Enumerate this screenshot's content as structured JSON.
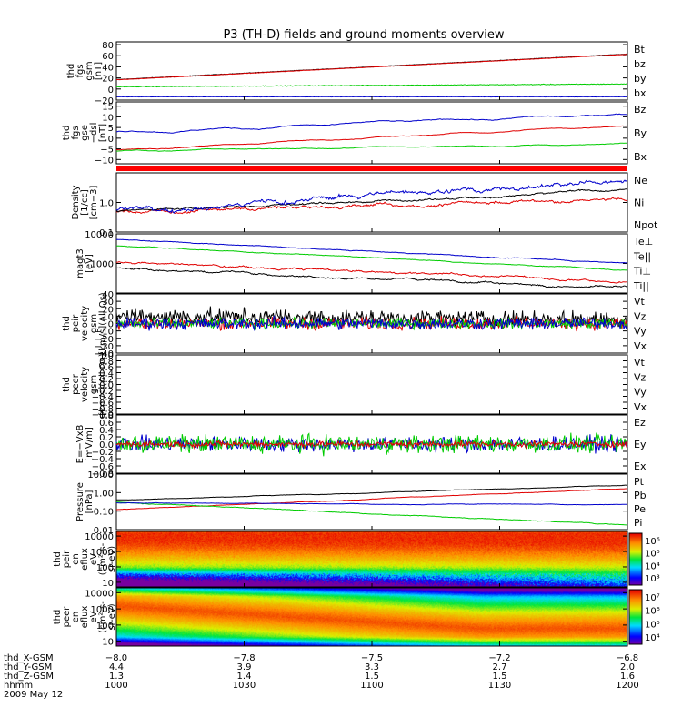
{
  "title": "P3 (TH-D) fields and ground moments overview",
  "colors": {
    "black": "#000000",
    "red": "#e00000",
    "green": "#00cc00",
    "blue": "#0000cc"
  },
  "chart_data": [
    {
      "type": "line",
      "ylabel": [
        "thd",
        "fgs",
        "gsm",
        "[nT]"
      ],
      "ylim": [
        -20,
        85
      ],
      "yticks": [
        "80",
        "60",
        "40",
        "20",
        "0",
        "−20"
      ],
      "legend": [
        "Bt",
        "bz",
        "by",
        "bx"
      ],
      "series": [
        {
          "name": "Bt",
          "color": "#000000",
          "start": 17,
          "end": 63,
          "noise": 0.3
        },
        {
          "name": "bz",
          "color": "#e00000",
          "start": 16.5,
          "end": 62.5,
          "noise": 0.3
        },
        {
          "name": "by",
          "color": "#00cc00",
          "start": 4,
          "end": 9,
          "noise": 0.5
        },
        {
          "name": "bx",
          "color": "#0000cc",
          "start": -14,
          "end": -14,
          "noise": 0.3
        }
      ]
    },
    {
      "type": "line",
      "ylabel": [
        "thd",
        "fgs",
        "gse",
        "−dsl",
        "[nT]"
      ],
      "ylim": [
        -12,
        17
      ],
      "yticks": [
        "15",
        "10",
        "5",
        "0",
        "−5",
        "−10"
      ],
      "legend": [
        "Bz",
        "By",
        "Bx"
      ],
      "series": [
        {
          "name": "Bz",
          "color": "#0000cc",
          "start": 3,
          "end": 11,
          "noise": 0.9
        },
        {
          "name": "By",
          "color": "#e00000",
          "start": -5.5,
          "end": 6,
          "noise": 0.6
        },
        {
          "name": "Bx",
          "color": "#00cc00",
          "start": -6,
          "end": -2.5,
          "noise": 0.6
        }
      ]
    },
    {
      "type": "line",
      "ylabel": [
        "Density",
        "[1/cc]",
        "[cm−3]"
      ],
      "ylim": [
        0.1,
        10
      ],
      "scale": "log",
      "yticks": [
        "1.0",
        "0.1"
      ],
      "legend": [
        "Ne",
        "Ni",
        "Npot"
      ],
      "series": [
        {
          "name": "Ne",
          "color": "#e00000",
          "start": 0.5,
          "end": 1.2,
          "noise": 0.08
        },
        {
          "name": "Ni",
          "color": "#000000",
          "start": 0.5,
          "end": 2.5,
          "noise": 0.05
        },
        {
          "name": "Npot",
          "color": "#0000cc",
          "start": 0.55,
          "end": 6.0,
          "noise": 0.12
        }
      ]
    },
    {
      "type": "line",
      "ylabel": [
        "magt3",
        "[eV]"
      ],
      "ylim": [
        100,
        10000
      ],
      "scale": "log",
      "yticks": [
        "10000",
        "1000"
      ],
      "legend": [
        "Te⊥",
        "Te||",
        "Ti⊥",
        "Ti||"
      ],
      "series": [
        {
          "name": "Te⊥",
          "color": "#e00000",
          "start": 1100,
          "end": 250,
          "noise": 0.05
        },
        {
          "name": "Te||",
          "color": "#000000",
          "start": 700,
          "end": 150,
          "noise": 0.05
        },
        {
          "name": "Ti⊥",
          "color": "#0000cc",
          "start": 6500,
          "end": 1000,
          "noise": 0.02
        },
        {
          "name": "Ti||",
          "color": "#00cc00",
          "start": 4000,
          "end": 600,
          "noise": 0.02
        }
      ]
    },
    {
      "type": "line",
      "ylabel": [
        "thd",
        "peir",
        "velocity",
        "gsm",
        "[km/s](All Qs)"
      ],
      "ylim": [
        -40,
        40
      ],
      "yticks": [
        "40",
        "30",
        "20",
        "10",
        "0",
        "−10",
        "−20",
        "−30",
        "−40"
      ],
      "legend": [
        "Vt",
        "Vz",
        "Vy",
        "Vx"
      ],
      "series": [
        {
          "name": "Vt",
          "color": "#000000",
          "start": 10,
          "end": 5,
          "noise": 8
        },
        {
          "name": "Vz",
          "color": "#e00000",
          "start": 0,
          "end": 0,
          "noise": 6
        },
        {
          "name": "Vy",
          "color": "#00cc00",
          "start": 0,
          "end": 0,
          "noise": 5
        },
        {
          "name": "Vx",
          "color": "#0000cc",
          "start": 0,
          "end": 0,
          "noise": 6
        }
      ]
    },
    {
      "type": "line",
      "ylabel": [
        "thd",
        "peer",
        "velocity",
        "gsm",
        "[km/s](All Qs)"
      ],
      "ylim": [
        -1,
        1
      ],
      "yticks": [
        "1.0",
        "0.8",
        "0.6",
        "0.4",
        "0.2",
        "0.0",
        "−0.2",
        "−0.4",
        "−0.6",
        "−0.8",
        "−1.0"
      ],
      "legend": [
        "Vt",
        "Vz",
        "Vy",
        "Vx"
      ],
      "series": []
    },
    {
      "type": "line",
      "ylabel": [
        "E=−VxB",
        "[mV/m]"
      ],
      "ylim": [
        -0.8,
        0.8
      ],
      "yticks": [
        "0.8",
        "0.6",
        "0.4",
        "0.2",
        "0.0",
        "−0.2",
        "−0.4",
        "−0.6",
        "−0.8"
      ],
      "legend": [
        "Ez",
        "Ey",
        "Ex"
      ],
      "series": [
        {
          "name": "Ex",
          "color": "#0000cc",
          "start": 0,
          "end": 0,
          "noise": 0.15
        },
        {
          "name": "Ey",
          "color": "#00cc00",
          "start": 0,
          "end": 0,
          "noise": 0.18
        },
        {
          "name": "Ez",
          "color": "#e00000",
          "start": 0,
          "end": 0,
          "noise": 0.06
        }
      ]
    },
    {
      "type": "line",
      "ylabel": [
        "Pressure",
        "[nPa]"
      ],
      "ylim": [
        0.01,
        10
      ],
      "scale": "log",
      "yticks": [
        "10.00",
        "1.00",
        "0.10",
        "0.01"
      ],
      "legend": [
        "Pt",
        "Pb",
        "Pe",
        "Pi"
      ],
      "series": [
        {
          "name": "Pt",
          "color": "#000000",
          "start": 0.4,
          "end": 2.5,
          "noise": 0.02
        },
        {
          "name": "Pb",
          "color": "#e00000",
          "start": 0.12,
          "end": 1.7,
          "noise": 0.02
        },
        {
          "name": "Pe",
          "color": "#00cc00",
          "start": 0.3,
          "end": 0.018,
          "noise": 0.03
        },
        {
          "name": "Pi",
          "color": "#0000cc",
          "start": 0.28,
          "end": 0.22,
          "noise": 0.02
        }
      ]
    },
    {
      "type": "heatmap",
      "ylabel": [
        "thd",
        "peir",
        "en",
        "eflux",
        "eV",
        "(cm²-s-",
        "sr-eV)"
      ],
      "ylim": [
        5,
        20000
      ],
      "scale": "log",
      "yticks": [
        "10000",
        "1000",
        "100",
        "10"
      ],
      "colorbar": {
        "ticks": [
          "10⁶",
          "10⁵",
          "10⁴",
          "10³"
        ],
        "range": [
          3,
          6.5
        ]
      }
    },
    {
      "type": "heatmap",
      "ylabel": [
        "thd",
        "peer",
        "en",
        "eflux",
        "eV",
        "(cm²-s-",
        "sr-eV)"
      ],
      "ylim": [
        5,
        20000
      ],
      "scale": "log",
      "yticks": [
        "10000",
        "1000",
        "100",
        "10"
      ],
      "colorbar": {
        "ticks": [
          "10⁷",
          "10⁶",
          "10⁵",
          "10⁴"
        ],
        "range": [
          3.7,
          7.5
        ]
      }
    }
  ],
  "xaxis": {
    "rows": [
      {
        "label": "thd_X-GSM",
        "values": [
          "−8.0",
          "−7.8",
          "−7.5",
          "−7.2",
          "−6.8"
        ]
      },
      {
        "label": "thd_Y-GSM",
        "values": [
          "4.4",
          "3.9",
          "3.3",
          "2.7",
          "2.0"
        ]
      },
      {
        "label": "thd_Z-GSM",
        "values": [
          "1.3",
          "1.4",
          "1.5",
          "1.5",
          "1.6"
        ]
      },
      {
        "label": "hhmm",
        "values": [
          "1000",
          "1030",
          "1100",
          "1130",
          "1200"
        ]
      }
    ],
    "date": "2009 May 12"
  }
}
